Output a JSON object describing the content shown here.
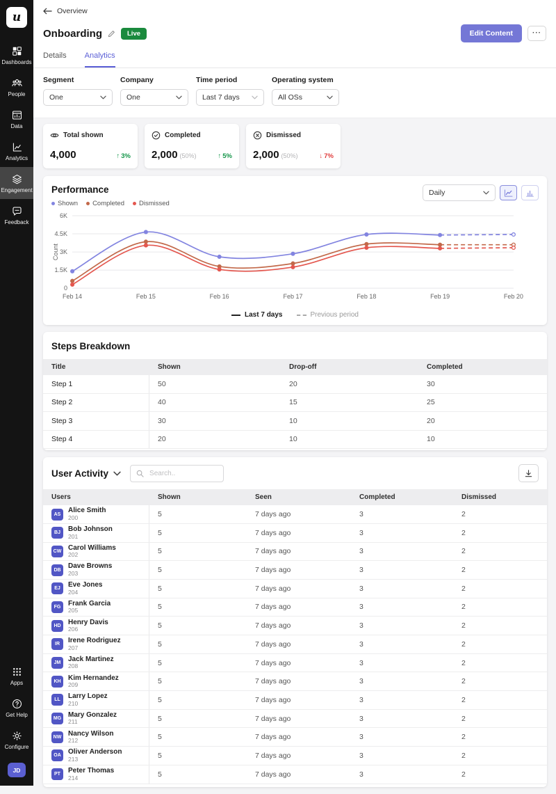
{
  "colors": {
    "accent_purple": "#5a5ed6",
    "edit_button": "#7477d6",
    "live_green": "#1a8a3d",
    "up_green": "#15964a",
    "down_red": "#e03c3c",
    "avatar_purple": "#5156c5",
    "sidebar_bg": "#141414"
  },
  "sidebar": {
    "logo": "u",
    "items": [
      {
        "label": "Dashboards"
      },
      {
        "label": "People"
      },
      {
        "label": "Data"
      },
      {
        "label": "Analytics"
      },
      {
        "label": "Engagement",
        "active": true
      },
      {
        "label": "Feedback"
      }
    ],
    "bottom_items": [
      {
        "label": "Apps"
      },
      {
        "label": "Get Help"
      },
      {
        "label": "Configure"
      }
    ],
    "avatar": "JD"
  },
  "header": {
    "back": "Overview",
    "title": "Onboarding",
    "live_badge": "Live",
    "edit_button": "Edit Content",
    "more_button": "···",
    "tabs": [
      {
        "label": "Details",
        "active": false
      },
      {
        "label": "Analytics",
        "active": true
      }
    ]
  },
  "filters": [
    {
      "label": "Segment",
      "value": "One"
    },
    {
      "label": "Company",
      "value": "One"
    },
    {
      "label": "Time period",
      "value": "Last 7 days"
    },
    {
      "label": "Operating system",
      "value": "All OSs"
    }
  ],
  "stats": [
    {
      "label": "Total shown",
      "value": "4,000",
      "sub": "",
      "delta": "3%",
      "direction": "up"
    },
    {
      "label": "Completed",
      "value": "2,000",
      "sub": "(50%)",
      "delta": "5%",
      "direction": "up"
    },
    {
      "label": "Dismissed",
      "value": "2,000",
      "sub": "(50%)",
      "delta": "7%",
      "direction": "down"
    }
  ],
  "performance": {
    "title": "Performance",
    "interval": "Daily",
    "legend": [
      {
        "label": "Shown",
        "color": "#8284e0"
      },
      {
        "label": "Completed",
        "color": "#c2694a"
      },
      {
        "label": "Dismissed",
        "color": "#e4574f"
      }
    ],
    "footer_legend": [
      {
        "label": "Last 7 days",
        "style": "solid"
      },
      {
        "label": "Previous period",
        "style": "dashed"
      }
    ]
  },
  "chart_data": {
    "type": "line",
    "x": [
      "Feb 14",
      "Feb 15",
      "Feb 16",
      "Feb 17",
      "Feb 18",
      "Feb 19",
      "Feb 20"
    ],
    "ylabel": "Count",
    "yticks": [
      "0",
      "1.5K",
      "3K",
      "4.5K",
      "6K"
    ],
    "ylim": [
      0,
      6000
    ],
    "grid": true,
    "dashed_from_index": 5,
    "series": [
      {
        "name": "Shown",
        "color": "#8284e0",
        "values": [
          1400,
          4650,
          2600,
          2850,
          4450,
          4400,
          4450
        ]
      },
      {
        "name": "Completed",
        "color": "#c2694a",
        "values": [
          600,
          3850,
          1800,
          2050,
          3650,
          3600,
          3600
        ]
      },
      {
        "name": "Dismissed",
        "color": "#e4574f",
        "values": [
          300,
          3550,
          1550,
          1750,
          3350,
          3300,
          3350
        ]
      }
    ]
  },
  "steps": {
    "title": "Steps Breakdown",
    "columns": [
      "Title",
      "Shown",
      "Drop-off",
      "Completed"
    ],
    "rows": [
      [
        "Step 1",
        "50",
        "20",
        "30"
      ],
      [
        "Step 2",
        "40",
        "15",
        "25"
      ],
      [
        "Step 3",
        "30",
        "10",
        "20"
      ],
      [
        "Step 4",
        "20",
        "10",
        "10"
      ]
    ]
  },
  "user_activity": {
    "title": "User Activity",
    "search_placeholder": "Search..",
    "columns": [
      "Users",
      "Shown",
      "Seen",
      "Completed",
      "Dismissed"
    ],
    "rows": [
      {
        "initials": "AS",
        "name": "Alice Smith",
        "id": "200",
        "shown": "5",
        "seen": "7 days ago",
        "completed": "3",
        "dismissed": "2"
      },
      {
        "initials": "BJ",
        "name": "Bob Johnson",
        "id": "201",
        "shown": "5",
        "seen": "7 days ago",
        "completed": "3",
        "dismissed": "2"
      },
      {
        "initials": "CW",
        "name": "Carol Williams",
        "id": "202",
        "shown": "5",
        "seen": "7 days ago",
        "completed": "3",
        "dismissed": "2"
      },
      {
        "initials": "DB",
        "name": "Dave Browns",
        "id": "203",
        "shown": "5",
        "seen": "7 days ago",
        "completed": "3",
        "dismissed": "2"
      },
      {
        "initials": "EJ",
        "name": "Eve Jones",
        "id": "204",
        "shown": "5",
        "seen": "7 days ago",
        "completed": "3",
        "dismissed": "2"
      },
      {
        "initials": "FG",
        "name": "Frank Garcia",
        "id": "205",
        "shown": "5",
        "seen": "7 days ago",
        "completed": "3",
        "dismissed": "2"
      },
      {
        "initials": "HD",
        "name": "Henry Davis",
        "id": "206",
        "shown": "5",
        "seen": "7 days ago",
        "completed": "3",
        "dismissed": "2"
      },
      {
        "initials": "IR",
        "name": "Irene Rodriguez",
        "id": "207",
        "shown": "5",
        "seen": "7 days ago",
        "completed": "3",
        "dismissed": "2"
      },
      {
        "initials": "JM",
        "name": "Jack Martinez",
        "id": "208",
        "shown": "5",
        "seen": "7 days ago",
        "completed": "3",
        "dismissed": "2"
      },
      {
        "initials": "KH",
        "name": "Kim Hernandez",
        "id": "209",
        "shown": "5",
        "seen": "7 days ago",
        "completed": "3",
        "dismissed": "2"
      },
      {
        "initials": "LL",
        "name": "Larry Lopez",
        "id": "210",
        "shown": "5",
        "seen": "7 days ago",
        "completed": "3",
        "dismissed": "2"
      },
      {
        "initials": "MG",
        "name": "Mary Gonzalez",
        "id": "211",
        "shown": "5",
        "seen": "7 days ago",
        "completed": "3",
        "dismissed": "2"
      },
      {
        "initials": "NW",
        "name": "Nancy Wilson",
        "id": "212",
        "shown": "5",
        "seen": "7 days ago",
        "completed": "3",
        "dismissed": "2"
      },
      {
        "initials": "OA",
        "name": "Oliver Anderson",
        "id": "213",
        "shown": "5",
        "seen": "7 days ago",
        "completed": "3",
        "dismissed": "2"
      },
      {
        "initials": "PT",
        "name": "Peter Thomas",
        "id": "214",
        "shown": "5",
        "seen": "7 days ago",
        "completed": "3",
        "dismissed": "2"
      }
    ]
  }
}
